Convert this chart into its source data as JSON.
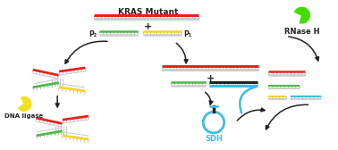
{
  "background": "#ffffff",
  "colors": {
    "red": "#e8221a",
    "green": "#4db848",
    "yellow": "#f5d327",
    "blue": "#3bbde4",
    "black": "#222222",
    "gray": "#aaaaaa",
    "enzyme_green": "#44dd00",
    "enzyme_yellow": "#f0e020"
  },
  "labels": {
    "kras": "KRAS Mutant",
    "p2": "P₂",
    "p1": "P₁",
    "rnase": "RNase H",
    "dna_ligase": "DNA ligase",
    "sdh": "SDH"
  }
}
